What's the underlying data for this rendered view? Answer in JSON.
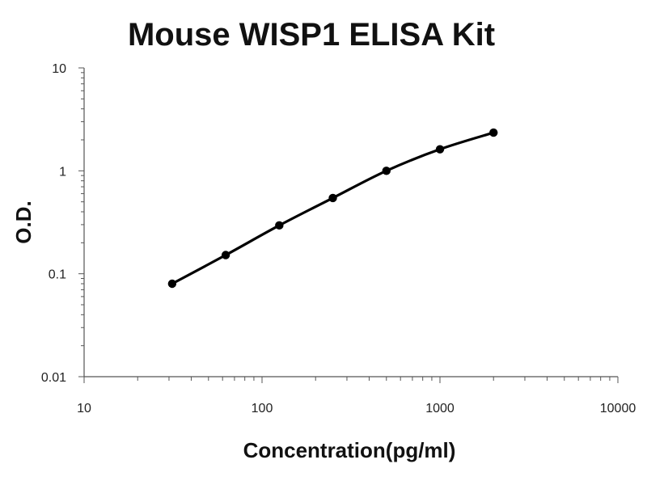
{
  "chart_data": {
    "type": "line",
    "title": "Mouse WISP1 ELISA Kit",
    "xlabel": "Concentration(pg/ml)",
    "ylabel": "O.D.",
    "x_scale": "log",
    "y_scale": "log",
    "xlim": [
      10,
      10000
    ],
    "ylim": [
      0.01,
      10
    ],
    "x_ticks": [
      "10",
      "100",
      "1000",
      "10000"
    ],
    "y_ticks": [
      "0.01",
      "0.1",
      "1",
      "10"
    ],
    "grid": false,
    "legend": "none",
    "series": [
      {
        "color": "#000000",
        "x": [
          31.25,
          62.5,
          125,
          250,
          500,
          1000,
          2000
        ],
        "y": [
          0.08,
          0.152,
          0.295,
          0.545,
          1.0,
          1.62,
          2.35
        ]
      }
    ]
  }
}
